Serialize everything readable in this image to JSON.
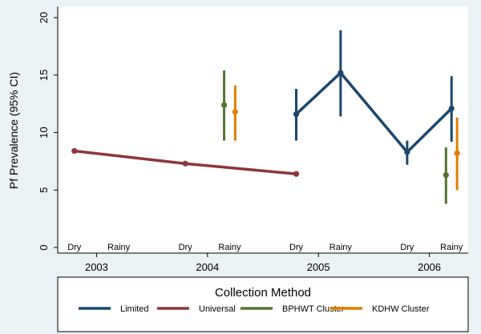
{
  "chart_data": {
    "type": "line",
    "ylabel": "Pf Prevalence (95% CI)",
    "ylim": [
      0,
      20
    ],
    "yticks": [
      0,
      5,
      10,
      15,
      20
    ],
    "xlim": [
      2002.65,
      2006.35
    ],
    "year_ticks": [
      {
        "x": 2003,
        "label": "2003"
      },
      {
        "x": 2004,
        "label": "2004"
      },
      {
        "x": 2005,
        "label": "2005"
      },
      {
        "x": 2006,
        "label": "2006"
      }
    ],
    "season_labels": [
      {
        "x": 2002.8,
        "label": "Dry"
      },
      {
        "x": 2003.2,
        "label": "Rainy"
      },
      {
        "x": 2003.8,
        "label": "Dry"
      },
      {
        "x": 2004.2,
        "label": "Rainy"
      },
      {
        "x": 2004.8,
        "label": "Dry"
      },
      {
        "x": 2005.2,
        "label": "Rainy"
      },
      {
        "x": 2005.8,
        "label": "Dry"
      },
      {
        "x": 2006.2,
        "label": "Rainy"
      }
    ],
    "grid": false,
    "legend": {
      "title": "Collection Method",
      "placement": "bottom"
    },
    "series": [
      {
        "name": "Limited",
        "color": "#1a476f",
        "connect": true,
        "points": [
          {
            "x": 2004.8,
            "y": 11.6,
            "lo": 9.3,
            "hi": 13.8
          },
          {
            "x": 2005.2,
            "y": 15.2,
            "lo": 11.4,
            "hi": 18.9
          },
          {
            "x": 2005.8,
            "y": 8.3,
            "lo": 7.2,
            "hi": 9.3
          },
          {
            "x": 2006.2,
            "y": 12.1,
            "lo": 9.2,
            "hi": 14.9
          }
        ]
      },
      {
        "name": "Universal",
        "color": "#90353b",
        "connect": true,
        "points": [
          {
            "x": 2002.8,
            "y": 8.4,
            "lo": 8.2,
            "hi": 8.6
          },
          {
            "x": 2003.8,
            "y": 7.3,
            "lo": 7.1,
            "hi": 7.5
          },
          {
            "x": 2004.8,
            "y": 6.4,
            "lo": 6.3,
            "hi": 6.5
          }
        ]
      },
      {
        "name": "BPHWT Cluster",
        "color": "#55752f",
        "connect": false,
        "points": [
          {
            "x": 2004.15,
            "y": 12.4,
            "lo": 9.3,
            "hi": 15.4
          },
          {
            "x": 2006.15,
            "y": 6.3,
            "lo": 3.8,
            "hi": 8.7
          }
        ]
      },
      {
        "name": "KDHW Cluster",
        "color": "#e37e00",
        "connect": false,
        "points": [
          {
            "x": 2004.25,
            "y": 11.8,
            "lo": 9.3,
            "hi": 14.1
          },
          {
            "x": 2006.25,
            "y": 8.2,
            "lo": 5.0,
            "hi": 11.3
          }
        ]
      }
    ]
  }
}
